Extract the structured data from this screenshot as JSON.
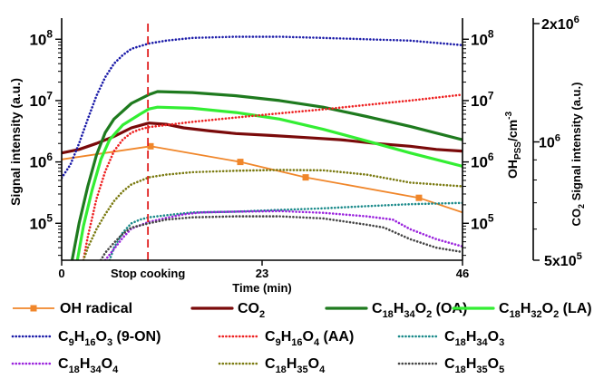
{
  "chart_data": {
    "type": "line",
    "title": "",
    "xlabel": "Time (min)",
    "ylabel_left": "Signal intensity (a.u.)",
    "ylabel_oh": "OH_PSS/cm^-3",
    "ylabel_co2": "CO2 Signal intensity (a.u.)",
    "x_ticks": [
      0,
      23,
      46
    ],
    "x_tick_labels": [
      "0",
      "23",
      "46"
    ],
    "x_annotation": "Stop cooking",
    "xlim": [
      0,
      46
    ],
    "stop_cooking_time": 9.9,
    "ylim_log": [
      25000,
      180000000
    ],
    "y_ticks_left": [
      {
        "value": 100000,
        "base": "10",
        "exp": "5"
      },
      {
        "value": 1000000,
        "base": "10",
        "exp": "6"
      },
      {
        "value": 10000000,
        "base": "10",
        "exp": "7"
      },
      {
        "value": 100000000,
        "base": "10",
        "exp": "8"
      }
    ],
    "y_ticks_oh": [
      {
        "value": 100000,
        "base": "10",
        "exp": "5"
      },
      {
        "value": 1000000,
        "base": "10",
        "exp": "6"
      },
      {
        "value": 10000000,
        "base": "10",
        "exp": "7"
      },
      {
        "value": 100000000,
        "base": "10",
        "exp": "8"
      }
    ],
    "co2_ylim": [
      500000,
      2000000
    ],
    "co2_ticks": [
      {
        "value": 2000000,
        "label": "2x10",
        "exp": "6"
      },
      {
        "value": 1000000,
        "label": "10",
        "exp": "6"
      },
      {
        "value": 500000,
        "label": "5x10",
        "exp": "5"
      }
    ],
    "series": [
      {
        "name": "OH radical",
        "sub": "",
        "color": "#f0862a",
        "style": "solid-square",
        "x": [
          0,
          10.2,
          20.5,
          28,
          41,
          46
        ],
        "y": [
          1100000,
          1800000,
          1000000,
          560000,
          260000,
          150000
        ]
      },
      {
        "name": "CO2",
        "sub": "2",
        "color": "#7a0a0a",
        "style": "solid-thick",
        "x": [
          0,
          2,
          4,
          6,
          8,
          10,
          12,
          14,
          17,
          20,
          24,
          28,
          32,
          36,
          40,
          43,
          46
        ],
        "y": [
          1400000,
          1600000,
          2000000,
          2600000,
          3600000,
          4300000,
          4100000,
          3600000,
          3200000,
          2900000,
          2700000,
          2500000,
          2300000,
          2000000,
          1800000,
          1600000,
          1500000
        ]
      },
      {
        "name": "C18H34O2 (OA)",
        "sub": "",
        "color": "#1e7a1e",
        "style": "solid-thick",
        "x": [
          1.2,
          2,
          3,
          4,
          5,
          6,
          8,
          10,
          11,
          15,
          20,
          25,
          30,
          35,
          40,
          46
        ],
        "y": [
          25000,
          100000,
          400000,
          1300000,
          3000000,
          5000000,
          9000000,
          12500000,
          14000000,
          13500000,
          12000000,
          10000000,
          7800000,
          5500000,
          3800000,
          2300000
        ]
      },
      {
        "name": "C18H32O2 (LA)",
        "sub": "",
        "color": "#33ee33",
        "style": "solid-thick",
        "x": [
          1.8,
          2.5,
          3.5,
          4.5,
          5.5,
          7,
          9,
          10,
          11,
          15,
          20,
          25,
          30,
          35,
          40,
          46
        ],
        "y": [
          25000,
          90000,
          350000,
          1100000,
          2300000,
          4000000,
          6000000,
          7300000,
          7800000,
          7500000,
          6400000,
          5000000,
          3400000,
          2200000,
          1400000,
          850000
        ]
      },
      {
        "name": "C9H16O3 (9-ON)",
        "sub": "",
        "color": "#1a1aa8",
        "style": "dotted",
        "x": [
          0,
          1,
          2,
          3,
          4,
          5,
          6,
          7,
          8,
          10,
          12,
          15,
          20,
          25,
          30,
          35,
          40,
          46
        ],
        "y": [
          550000,
          900000,
          2000000,
          5000000,
          12000000,
          24000000,
          40000000,
          55000000,
          70000000,
          85000000,
          95000000,
          105000000,
          110000000,
          110000000,
          105000000,
          100000000,
          95000000,
          80000000
        ]
      },
      {
        "name": "C9H16O4 (AA)",
        "sub": "",
        "color": "#ee2020",
        "style": "dotted",
        "x": [
          2.5,
          3,
          4,
          5,
          6,
          7,
          8,
          9,
          10,
          12,
          15,
          20,
          25,
          30,
          35,
          40,
          46
        ],
        "y": [
          25000,
          60000,
          250000,
          700000,
          1500000,
          2300000,
          3000000,
          3400000,
          3700000,
          4000000,
          4500000,
          5300000,
          6200000,
          7200000,
          8500000,
          10000000,
          12500000
        ]
      },
      {
        "name": "C18H34O3",
        "sub": "",
        "color": "#1a8a8a",
        "style": "dotted",
        "x": [
          5.5,
          6,
          7,
          8,
          9,
          10,
          12,
          15,
          20,
          25,
          30,
          35,
          40,
          46
        ],
        "y": [
          25000,
          40000,
          70000,
          100000,
          115000,
          125000,
          135000,
          150000,
          155000,
          165000,
          175000,
          190000,
          205000,
          215000
        ]
      },
      {
        "name": "C18H34O4",
        "sub": "",
        "color": "#9a22dd",
        "style": "dotted",
        "x": [
          5,
          6,
          7,
          8,
          10,
          12,
          14,
          16,
          20,
          25,
          30,
          35,
          38,
          40,
          43,
          46
        ],
        "y": [
          25000,
          38000,
          58000,
          82000,
          105000,
          122000,
          140000,
          150000,
          155000,
          158000,
          148000,
          130000,
          115000,
          80000,
          55000,
          42000
        ]
      },
      {
        "name": "C18H35O4",
        "sub": "",
        "color": "#7a7a10",
        "style": "dotted",
        "x": [
          2.5,
          3,
          4,
          5,
          6,
          7,
          8,
          10,
          12,
          15,
          20,
          25,
          30,
          35,
          40,
          46
        ],
        "y": [
          25000,
          40000,
          80000,
          140000,
          230000,
          330000,
          430000,
          560000,
          620000,
          680000,
          720000,
          740000,
          730000,
          620000,
          460000,
          400000
        ]
      },
      {
        "name": "C18H35O5",
        "sub": "",
        "color": "#444444",
        "style": "dotted",
        "x": [
          4.5,
          5,
          6,
          7,
          8,
          10,
          12,
          15,
          20,
          25,
          30,
          35,
          37,
          40,
          43,
          46
        ],
        "y": [
          25000,
          33000,
          48000,
          67000,
          85000,
          100000,
          115000,
          125000,
          130000,
          130000,
          120000,
          95000,
          85000,
          55000,
          40000,
          34000
        ]
      }
    ],
    "legend": [
      {
        "label_main": "OH radical",
        "subs": []
      },
      {
        "label_main": "CO",
        "subs": [
          {
            "t": "2"
          }
        ]
      },
      {
        "label_main": "C",
        "subs": [
          {
            "t": "18"
          },
          {
            "n": "H"
          },
          {
            "t": "34"
          },
          {
            "n": "O"
          },
          {
            "t": "2"
          },
          {
            "n": " (OA)"
          }
        ]
      },
      {
        "label_main": "C",
        "subs": [
          {
            "t": "18"
          },
          {
            "n": "H"
          },
          {
            "t": "32"
          },
          {
            "n": "O"
          },
          {
            "t": "2"
          },
          {
            "n": " (LA)"
          }
        ]
      },
      {
        "label_main": "C",
        "subs": [
          {
            "t": "9"
          },
          {
            "n": "H"
          },
          {
            "t": "16"
          },
          {
            "n": "O"
          },
          {
            "t": "3"
          },
          {
            "n": " (9-ON)"
          }
        ]
      },
      {
        "label_main": "C",
        "subs": [
          {
            "t": "9"
          },
          {
            "n": "H"
          },
          {
            "t": "16"
          },
          {
            "n": "O"
          },
          {
            "t": "4"
          },
          {
            "n": " (AA)"
          }
        ]
      },
      {
        "label_main": "C",
        "subs": [
          {
            "t": "18"
          },
          {
            "n": "H"
          },
          {
            "t": "34"
          },
          {
            "n": "O"
          },
          {
            "t": "3"
          }
        ]
      },
      {
        "label_main": "C",
        "subs": [
          {
            "t": "18"
          },
          {
            "n": "H"
          },
          {
            "t": "34"
          },
          {
            "n": "O"
          },
          {
            "t": "4"
          }
        ]
      },
      {
        "label_main": "C",
        "subs": [
          {
            "t": "18"
          },
          {
            "n": "H"
          },
          {
            "t": "35"
          },
          {
            "n": "O"
          },
          {
            "t": "4"
          }
        ]
      },
      {
        "label_main": "C",
        "subs": [
          {
            "t": "18"
          },
          {
            "n": "H"
          },
          {
            "t": "35"
          },
          {
            "n": "O"
          },
          {
            "t": "5"
          }
        ]
      }
    ]
  }
}
